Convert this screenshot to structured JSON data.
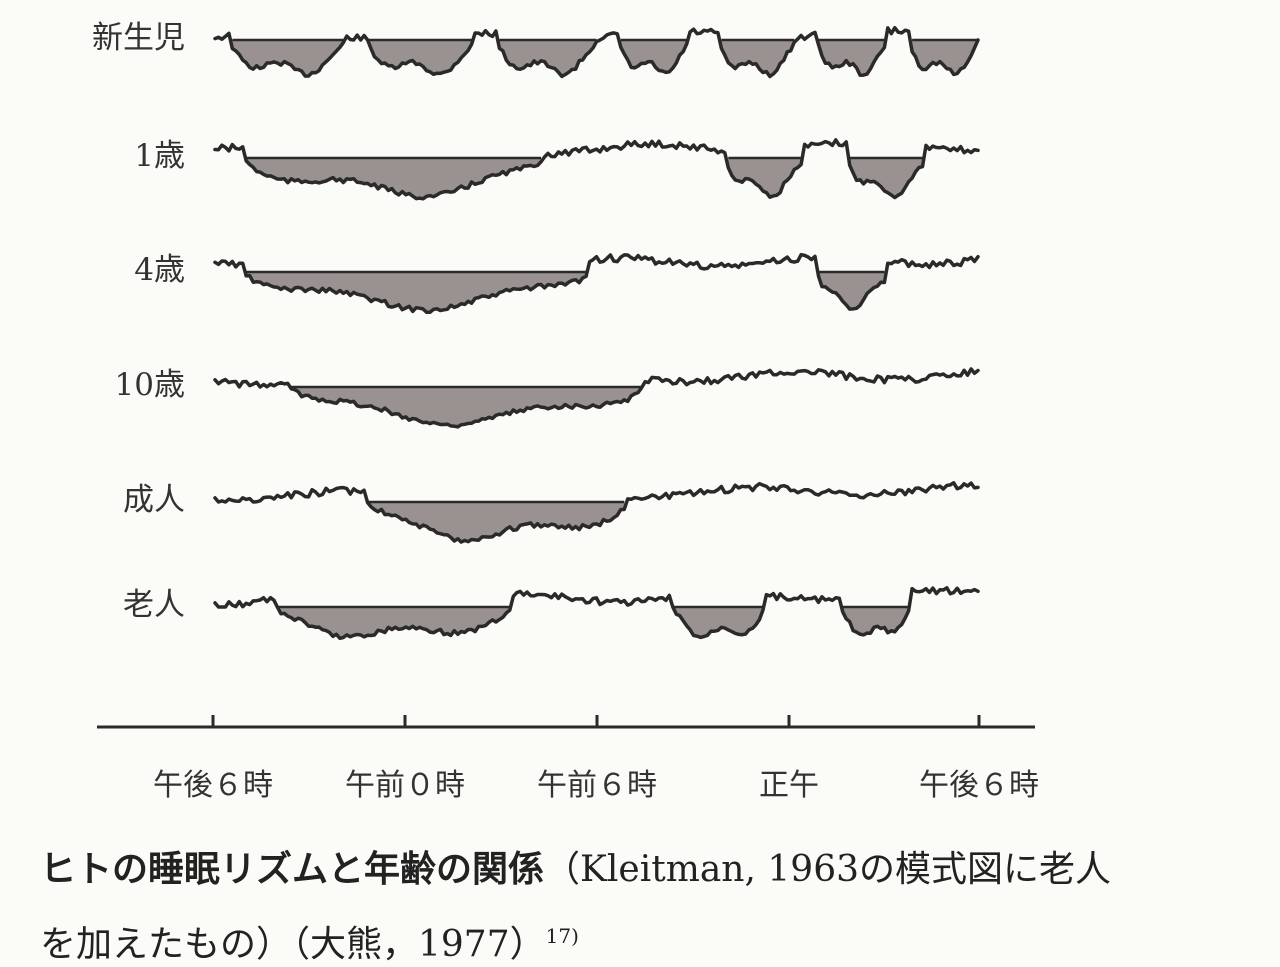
{
  "rows": [
    {
      "label": "新生児",
      "sleep": [
        [
          0.02,
          0.17
        ],
        [
          0.2,
          0.34
        ],
        [
          0.37,
          0.5
        ],
        [
          0.53,
          0.62
        ],
        [
          0.66,
          0.76
        ],
        [
          0.79,
          0.88
        ],
        [
          0.91,
          1.0
        ]
      ]
    },
    {
      "label": "1歳",
      "sleep": [
        [
          0.04,
          0.43
        ],
        [
          0.67,
          0.77
        ],
        [
          0.83,
          0.93
        ]
      ]
    },
    {
      "label": "4歳",
      "sleep": [
        [
          0.04,
          0.49
        ],
        [
          0.79,
          0.88
        ]
      ]
    },
    {
      "label": "10歳",
      "sleep": [
        [
          0.1,
          0.56
        ]
      ]
    },
    {
      "label": "成人",
      "sleep": [
        [
          0.2,
          0.54
        ]
      ]
    },
    {
      "label": "老人",
      "sleep": [
        [
          0.08,
          0.39
        ],
        [
          0.6,
          0.72
        ],
        [
          0.82,
          0.91
        ]
      ]
    }
  ],
  "x_axis": {
    "ticks": [
      "午後６時",
      "午前０時",
      "午前６時",
      "正午",
      "午後６時"
    ]
  },
  "caption": {
    "title": "ヒトの睡眠リズムと年齢の関係",
    "line1_rest": "（Kleitman, 1963の模式図に老人",
    "line2": "を加えたもの）（大熊，1977）",
    "ref": "17)"
  },
  "colors": {
    "line": "#2a2a2a",
    "sleep_fill": "#9a9290"
  }
}
